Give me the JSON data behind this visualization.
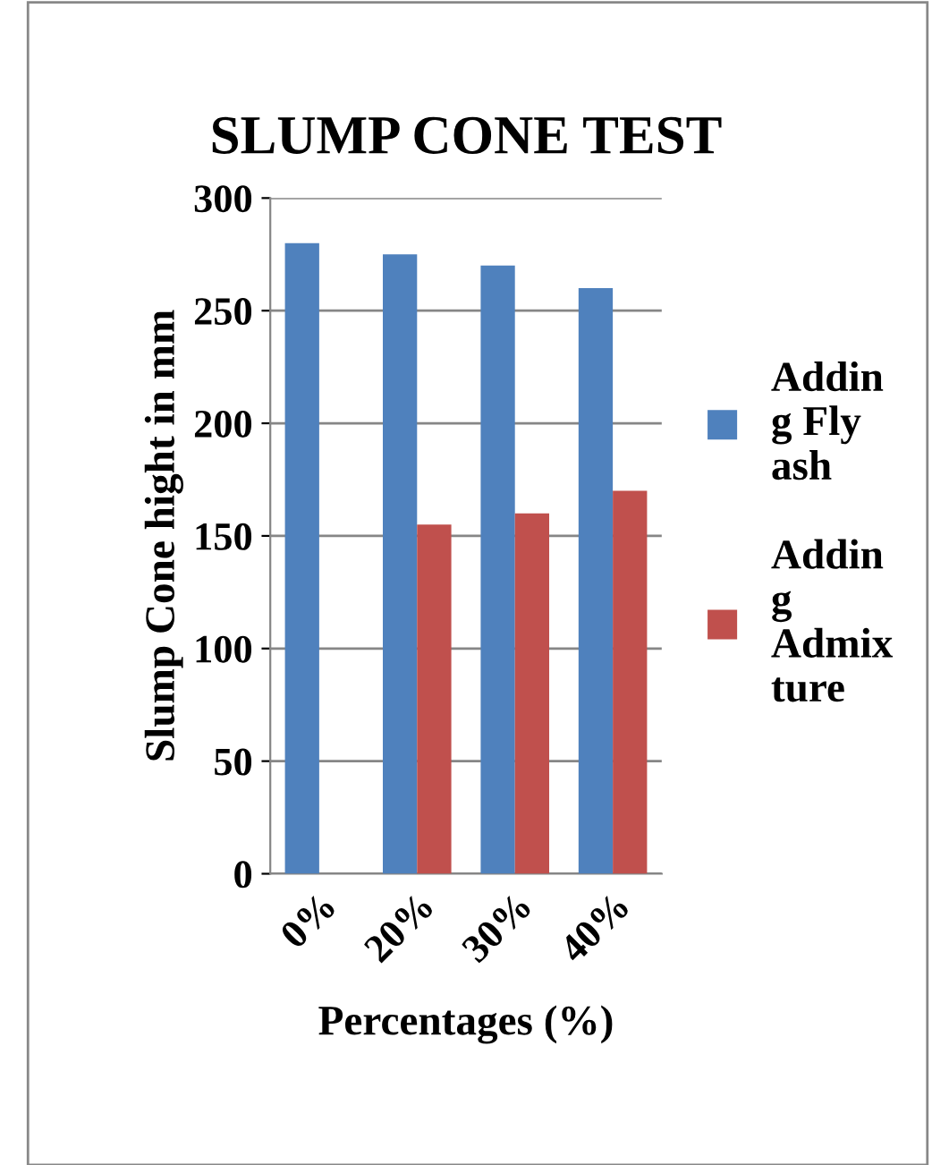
{
  "chart_data": {
    "type": "bar",
    "title": "SLUMP CONE TEST",
    "xlabel": "Percentages (%)",
    "ylabel": "Slump Cone hight in mm",
    "categories": [
      "0%",
      "20%",
      "30%",
      "40%"
    ],
    "series": [
      {
        "name": "Adding Fly ash",
        "color": "#4f81bd",
        "values": [
          280,
          275,
          270,
          260
        ]
      },
      {
        "name": "Adding Admixture",
        "color": "#c0504d",
        "values": [
          null,
          155,
          160,
          170
        ]
      }
    ],
    "ylim": [
      0,
      300
    ],
    "yticks": [
      0,
      50,
      100,
      150,
      200,
      250,
      300
    ],
    "grid": "y",
    "legend": "right"
  }
}
